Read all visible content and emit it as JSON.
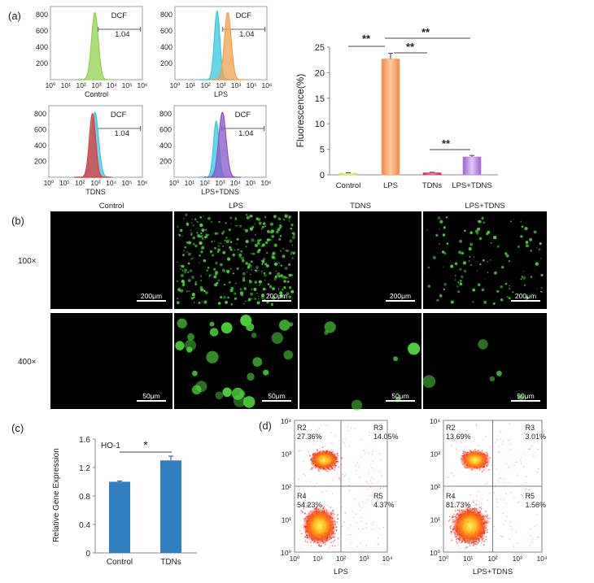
{
  "panel_labels": {
    "a": "(a)",
    "b": "(b)",
    "c": "(c)",
    "d": "(d)"
  },
  "histograms": [
    {
      "label": "Control",
      "gate_label": "DCF",
      "gate_value": "1.04",
      "y_ticks": [
        "800",
        "600",
        "400",
        "200"
      ],
      "x_ticks": [
        "10⁰",
        "10¹",
        "10²",
        "10³",
        "10⁴",
        "10⁵",
        "10⁶"
      ],
      "curves": [
        {
          "color": "#8fd14f",
          "peak_decade": 2.9,
          "width": 0.22,
          "height": 0.96
        }
      ]
    },
    {
      "label": "LPS",
      "gate_label": "DCF",
      "gate_value": "1.04",
      "y_ticks": [
        "800",
        "600",
        "400",
        "200"
      ],
      "x_ticks": [
        "10⁰",
        "10¹",
        "10²",
        "10³",
        "10⁴",
        "10⁵",
        "10⁶"
      ],
      "curves": [
        {
          "color": "#35c8e0",
          "peak_decade": 2.75,
          "width": 0.18,
          "height": 0.98
        },
        {
          "color": "#f0a04b",
          "peak_decade": 3.45,
          "width": 0.22,
          "height": 0.96
        }
      ]
    },
    {
      "label": "TDNS",
      "gate_label": "DCF",
      "gate_value": "1.04",
      "y_ticks": [
        "800",
        "600",
        "400",
        "200"
      ],
      "x_ticks": [
        "10⁰",
        "10¹",
        "10²",
        "10³",
        "10⁴",
        "10⁵",
        "10⁶"
      ],
      "curves": [
        {
          "color": "#35c8e0",
          "peak_decade": 2.95,
          "width": 0.24,
          "height": 0.95
        },
        {
          "color": "#e03a3a",
          "peak_decade": 2.8,
          "width": 0.2,
          "height": 0.93
        }
      ]
    },
    {
      "label": "LPS+TDNS",
      "gate_label": "DCF",
      "gate_value": "1.04",
      "y_ticks": [
        "800",
        "600",
        "400",
        "200"
      ],
      "x_ticks": [
        "10⁰",
        "10¹",
        "10²",
        "10³",
        "10⁴",
        "10⁵",
        "10⁶"
      ],
      "curves": [
        {
          "color": "#35c8e0",
          "peak_decade": 2.75,
          "width": 0.18,
          "height": 0.82
        },
        {
          "color": "#8a55c8",
          "peak_decade": 3.15,
          "width": 0.24,
          "height": 0.95
        }
      ]
    }
  ],
  "bar_fluorescence": {
    "ylabel": "Fluorescence(%)",
    "y_ticks": [
      "25",
      "20",
      "15",
      "10",
      "5",
      "0"
    ],
    "significance": [
      "**",
      "**",
      "**",
      "**"
    ]
  },
  "micrographs": {
    "columns": [
      "Control",
      "LPS",
      "TDNS",
      "LPS+TDNS"
    ],
    "rows": [
      {
        "label": "100×",
        "scale_bar": "200μm"
      },
      {
        "label": "400×",
        "scale_bar": "50μm"
      }
    ]
  },
  "bar_ho1": {
    "ylabel": "Relative Gene Expression",
    "annotation": "HO-1",
    "y_ticks": [
      "1.6",
      "1.2",
      "0.8",
      "0.4",
      "0"
    ],
    "significance": "*"
  },
  "dotplots": [
    {
      "label": "LPS",
      "R2": "R2",
      "R2_val": "27.36%",
      "R3": "R3",
      "R3_val": "14.05%",
      "R4": "R4",
      "R4_val": "54.23%",
      "R5": "R5",
      "R5_val": "4.37%",
      "y_ticks": [
        "10⁴",
        "10³",
        "10²",
        "10¹",
        "10⁰"
      ],
      "x_ticks": [
        "10⁰",
        "10¹",
        "10²",
        "10³",
        "10⁴"
      ]
    },
    {
      "label": "LPS+TDNS",
      "R2": "R2",
      "R2_val": "13.69%",
      "R3": "R3",
      "R3_val": "3.01%",
      "R4": "R4",
      "R4_val": "81.73%",
      "R5": "R5",
      "R5_val": "1.56%",
      "y_ticks": [
        "10⁴",
        "10³",
        "10²",
        "10¹",
        "10⁰"
      ],
      "x_ticks": [
        "10⁰",
        "10¹",
        "10²",
        "10³",
        "10⁴"
      ]
    }
  ],
  "colors": {
    "bar_ho1": "#2f7fc1",
    "dot_hot": "#fff35a",
    "dot_cold": "#e81a10",
    "green": "#4bd33a"
  },
  "chart_data": [
    {
      "type": "bar",
      "categories": [
        "Control",
        "LPS",
        "TDNs",
        "LPS+TDNS"
      ],
      "values": [
        0.3,
        22.7,
        0.4,
        3.5
      ],
      "errors": [
        0.1,
        1.1,
        0.1,
        0.3
      ],
      "colors": [
        "#d6e64a",
        "#f5a66a",
        "#e53a6a",
        "#b37ee0"
      ],
      "ylabel": "Fluorescence(%)",
      "ylim": [
        0,
        25
      ],
      "grid": false,
      "bar_fill": "gradient"
    },
    {
      "type": "bar",
      "categories": [
        "Control",
        "TDNs"
      ],
      "values": [
        1.0,
        1.3
      ],
      "errors": [
        0.01,
        0.06
      ],
      "ylabel": "Relative Gene Expression",
      "ylim": [
        0,
        1.6
      ],
      "grid": false
    }
  ]
}
